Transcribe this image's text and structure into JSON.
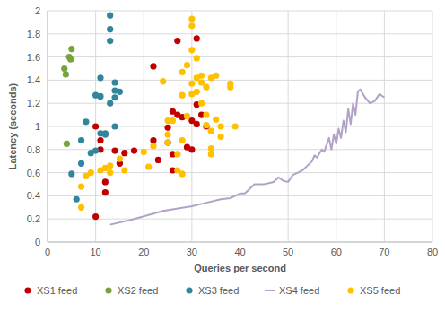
{
  "chart_data": {
    "type": "scatter",
    "x_label": "Queries per second",
    "y_label": "Latency (seconds)",
    "xlim": [
      0,
      80
    ],
    "xticks": [
      0,
      10,
      20,
      30,
      40,
      50,
      60,
      70,
      80
    ],
    "ylim": [
      0,
      2
    ],
    "yticks": [
      0,
      0.2,
      0.4,
      0.6,
      0.8,
      1,
      1.2,
      1.4,
      1.6,
      1.8,
      2
    ],
    "grid": true,
    "legend": "bottom",
    "series": [
      {
        "name": "XS1 feed",
        "color": "#c00000",
        "type": "scatter",
        "marker": "circle",
        "x": [
          10,
          12,
          12,
          10,
          11,
          11,
          14,
          15,
          16,
          18,
          22,
          22,
          23,
          25,
          25,
          26,
          27,
          27,
          28,
          29,
          30,
          30,
          31,
          31,
          32,
          31,
          26,
          26,
          33
        ],
        "values": [
          0.22,
          0.43,
          0.52,
          1.0,
          0.88,
          0.8,
          0.79,
          0.68,
          0.77,
          0.79,
          0.88,
          1.52,
          0.71,
          0.99,
          0.86,
          1.13,
          1.74,
          1.1,
          1.08,
          0.82,
          1.05,
          0.8,
          1.19,
          1.76,
          1.1,
          1.02,
          0.76,
          0.62,
          1.0
        ]
      },
      {
        "name": "XS2 feed",
        "color": "#77a33c",
        "type": "scatter",
        "marker": "circle",
        "x": [
          3.5,
          3.8,
          4.5,
          4.8,
          5,
          4
        ],
        "values": [
          1.5,
          1.45,
          1.6,
          1.58,
          1.67,
          0.85
        ]
      },
      {
        "name": "XS3 feed",
        "color": "#31859c",
        "type": "scatter",
        "marker": "circle",
        "x": [
          5,
          6,
          7,
          7,
          8,
          9,
          10,
          10,
          11,
          11,
          12,
          11,
          13,
          13,
          13,
          14,
          14,
          14,
          15,
          13,
          14,
          12
        ],
        "values": [
          0.59,
          0.37,
          0.88,
          0.68,
          1.04,
          0.77,
          0.79,
          1.27,
          1.42,
          0.94,
          0.94,
          1.26,
          1.96,
          1.84,
          1.74,
          1.31,
          1.38,
          1.25,
          1.3,
          1.2,
          1.0,
          0.93
        ]
      },
      {
        "name": "XS4 feed",
        "color": "#b3a2c7",
        "type": "line",
        "marker": "none",
        "line_style": "solid",
        "x": [
          13,
          18,
          24,
          30,
          33,
          36,
          38,
          40,
          41,
          42,
          43,
          45,
          47,
          48,
          49,
          50,
          51,
          52,
          53,
          54,
          55,
          55.5,
          56,
          57,
          57.5,
          58,
          58.5,
          59,
          59.5,
          60,
          60.5,
          61,
          61.5,
          62,
          62.5,
          63,
          63.5,
          64,
          64.5,
          65,
          66,
          67,
          68,
          69,
          70
        ],
        "values": [
          0.15,
          0.2,
          0.27,
          0.31,
          0.34,
          0.37,
          0.38,
          0.42,
          0.42,
          0.46,
          0.5,
          0.5,
          0.52,
          0.56,
          0.53,
          0.52,
          0.58,
          0.6,
          0.62,
          0.66,
          0.7,
          0.75,
          0.73,
          0.8,
          0.78,
          0.84,
          0.9,
          0.8,
          0.93,
          0.85,
          0.98,
          0.9,
          1.05,
          0.95,
          1.15,
          1.02,
          1.2,
          1.1,
          1.3,
          1.32,
          1.25,
          1.2,
          1.22,
          1.28,
          1.25
        ]
      },
      {
        "name": "XS5 feed",
        "color": "#ffc000",
        "type": "scatter",
        "marker": "circle",
        "x": [
          7,
          7,
          8,
          9,
          11,
          12,
          13,
          13,
          15,
          16,
          20,
          21,
          22,
          24,
          25,
          25,
          25,
          26,
          27,
          28,
          28,
          27,
          28,
          28,
          29,
          30,
          30,
          30,
          30,
          30,
          31,
          31,
          32,
          32,
          31,
          33,
          33,
          33,
          34,
          34,
          34,
          34,
          35,
          35,
          36,
          36,
          38,
          38,
          39,
          32,
          29
        ],
        "values": [
          0.3,
          0.48,
          0.57,
          0.6,
          0.62,
          0.64,
          0.6,
          0.66,
          0.72,
          0.62,
          0.78,
          0.65,
          0.83,
          1.39,
          0.93,
          0.86,
          1.05,
          1.05,
          0.62,
          0.59,
          0.88,
          0.76,
          1.27,
          1.47,
          1.53,
          1.93,
          1.87,
          1.66,
          1.37,
          1.28,
          1.59,
          1.42,
          1.44,
          1.38,
          1.3,
          1.34,
          1.01,
          1.1,
          1.42,
          0.96,
          0.81,
          0.76,
          1.06,
          1.44,
          1.0,
          0.91,
          1.37,
          1.34,
          1.0,
          1.2,
          1.09
        ]
      }
    ]
  }
}
